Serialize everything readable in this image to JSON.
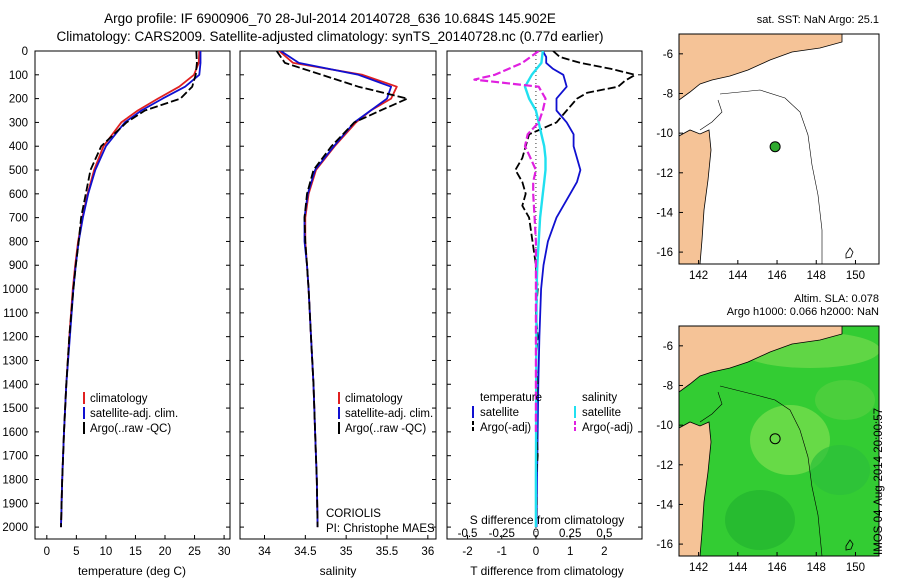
{
  "title_line1": "Argo profile: IF 6900906_70 28-Jul-2014 20140728_636 10.684S 145.902E",
  "title_line2": "Climatology: CARS2009. Satellite-adjusted climatology: synTS_20140728.nc (0.77d earlier)",
  "map1_title": "sat. SST: NaN Argo: 25.1",
  "map2_title_line1": "Altim. SLA: 0.078",
  "map2_title_line2": "Argo h1000: 0.066 h2000: NaN",
  "stamp": "IMOS 04-Aug-2014 20:00:57",
  "colors": {
    "climatology": "#e02020",
    "satellite": "#1010d0",
    "argo": "#000000",
    "salinity_sat": "#20e0f0",
    "salinity_argo": "#e020e0",
    "land": "#f5c397",
    "ocean_green": "#33cc33"
  },
  "chart_data": [
    {
      "type": "line",
      "id": "temperature",
      "xlabel": "temperature (deg C)",
      "ylabel": "",
      "xlim": [
        -2,
        31
      ],
      "ylim": [
        2050,
        0
      ],
      "xticks": [
        0,
        5,
        10,
        15,
        20,
        25,
        30
      ],
      "yticks": [
        0,
        100,
        200,
        300,
        400,
        500,
        600,
        700,
        800,
        900,
        1000,
        1100,
        1200,
        1300,
        1400,
        1500,
        1600,
        1700,
        1800,
        1900,
        2000
      ],
      "legend": [
        "climatology",
        "satellite-adj. clim.",
        "Argo(..raw -QC)"
      ],
      "series": [
        {
          "name": "climatology",
          "depth": [
            0,
            50,
            100,
            150,
            200,
            250,
            300,
            400,
            500,
            600,
            700,
            800,
            900,
            1000,
            1200,
            1400,
            1600,
            1800,
            2000
          ],
          "values": [
            25.8,
            25.7,
            24.9,
            22.4,
            18.8,
            15.4,
            12.6,
            9.6,
            8.0,
            6.9,
            6.0,
            5.3,
            4.8,
            4.4,
            3.8,
            3.3,
            2.9,
            2.6,
            2.4
          ]
        },
        {
          "name": "satellite-adj. clim.",
          "depth": [
            0,
            50,
            100,
            150,
            200,
            250,
            300,
            400,
            500,
            600,
            700,
            800,
            900,
            1000,
            1200,
            1400,
            1600,
            1800,
            2000
          ],
          "values": [
            26.0,
            26.0,
            25.8,
            23.4,
            19.6,
            16.0,
            13.2,
            10.0,
            8.2,
            7.0,
            6.1,
            5.4,
            4.9,
            4.5,
            3.9,
            3.3,
            2.9,
            2.6,
            2.4
          ]
        },
        {
          "name": "Argo(..raw -QC)",
          "depth": [
            0,
            50,
            100,
            150,
            200,
            250,
            300,
            400,
            500,
            600,
            700,
            800,
            900,
            1000,
            1200,
            1400,
            1600,
            1800,
            2000
          ],
          "values": [
            25.3,
            25.4,
            25.2,
            24.6,
            22.6,
            16.6,
            13.5,
            9.2,
            7.4,
            6.6,
            5.8,
            5.4,
            4.9,
            4.5,
            3.8,
            3.3,
            2.9,
            2.6,
            2.4
          ]
        }
      ]
    },
    {
      "type": "line",
      "id": "salinity",
      "xlabel": "salinity",
      "ylabel": "",
      "xlim": [
        33.7,
        36.1
      ],
      "ylim": [
        2050,
        0
      ],
      "xticks": [
        34,
        34.5,
        35,
        35.5,
        36
      ],
      "xticklabels": [
        "34",
        "34.5",
        "35",
        "35.5",
        "36"
      ],
      "legend": [
        "climatology",
        "satellite-adj. clim.",
        "Argo(..raw -QC)"
      ],
      "annotation_line1": "CORIOLIS",
      "annotation_line2": "PI: Christophe MAES",
      "series": [
        {
          "name": "climatology",
          "depth": [
            0,
            50,
            100,
            150,
            200,
            250,
            300,
            400,
            500,
            600,
            700,
            800,
            900,
            1000,
            1200,
            1400,
            1600,
            1800,
            2000
          ],
          "values": [
            34.18,
            34.35,
            35.2,
            35.62,
            35.55,
            35.3,
            35.12,
            34.86,
            34.63,
            34.54,
            34.5,
            34.5,
            34.52,
            34.54,
            34.57,
            34.6,
            34.62,
            34.64,
            34.65
          ]
        },
        {
          "name": "satellite-adj. clim.",
          "depth": [
            0,
            50,
            100,
            150,
            200,
            250,
            300,
            400,
            500,
            600,
            700,
            800,
            900,
            1000,
            1200,
            1400,
            1600,
            1800,
            2000
          ],
          "values": [
            34.2,
            34.42,
            35.15,
            35.55,
            35.5,
            35.3,
            35.1,
            34.85,
            34.62,
            34.53,
            34.49,
            34.49,
            34.52,
            34.54,
            34.57,
            34.6,
            34.62,
            34.64,
            34.65
          ]
        },
        {
          "name": "Argo(..raw -QC)",
          "depth": [
            0,
            50,
            100,
            150,
            200,
            250,
            300,
            400,
            500,
            600,
            700,
            800,
            900,
            1000,
            1200,
            1400,
            1600,
            1800,
            2000
          ],
          "values": [
            34.15,
            34.25,
            34.7,
            35.15,
            35.75,
            35.42,
            35.1,
            34.82,
            34.6,
            34.52,
            34.49,
            34.5,
            34.52,
            34.54,
            34.57,
            34.6,
            34.62,
            34.64,
            34.65
          ]
        }
      ]
    },
    {
      "type": "line",
      "id": "differences",
      "xlabel": "T difference from climatology",
      "x2label": "S difference from climatology",
      "xlim": [
        -2.6,
        3.1
      ],
      "ylim": [
        2050,
        0
      ],
      "xticks": [
        -2,
        -1,
        0,
        1,
        2
      ],
      "x2ticklabels": [
        "-0.5",
        "-0.25",
        "0",
        "0.25",
        "0.5"
      ],
      "legend_temperature_title": "temperature",
      "legend_salinity_title": "salinity",
      "legend_temperature": [
        "satellite",
        "Argo(-adj)"
      ],
      "legend_salinity": [
        "satellite",
        "Argo(-adj)"
      ],
      "series": [
        {
          "name": "temperature satellite",
          "depth": [
            0,
            25,
            50,
            75,
            100,
            150,
            200,
            250,
            300,
            350,
            400,
            450,
            500,
            550,
            600,
            700,
            800,
            900,
            1000,
            1200,
            1400,
            1600,
            1800,
            2000
          ],
          "values": [
            0.2,
            0.3,
            0.3,
            0.5,
            0.8,
            0.9,
            0.6,
            0.6,
            0.9,
            1.1,
            1.1,
            1.2,
            1.3,
            1.2,
            1.0,
            0.6,
            0.35,
            0.22,
            0.15,
            0.1,
            0.07,
            0.05,
            0.03,
            0.02
          ]
        },
        {
          "name": "temperature Argo(-adj)",
          "depth": [
            0,
            25,
            50,
            75,
            100,
            125,
            150,
            175,
            200,
            250,
            300,
            350,
            400,
            450,
            500,
            550,
            600,
            650,
            700,
            800,
            900,
            1000,
            1100,
            1200,
            1300,
            1400,
            1500,
            1600,
            1700,
            1800,
            1900,
            2000
          ],
          "values": [
            0.5,
            0.7,
            1.3,
            2.2,
            2.9,
            2.6,
            2.4,
            1.5,
            1.2,
            0.9,
            0.6,
            -0.2,
            -0.3,
            -0.4,
            -0.6,
            -0.4,
            -0.3,
            -0.4,
            -0.2,
            -0.1,
            0.0,
            0.05,
            0.0,
            0.05,
            0.0,
            0.05,
            0.0,
            0.02,
            0.05,
            0.0,
            0.02,
            0.0
          ]
        },
        {
          "name": "salinity satellite",
          "depth": [
            0,
            50,
            100,
            150,
            200,
            250,
            300,
            350,
            400,
            450,
            500,
            550,
            600,
            700,
            800,
            900,
            1000,
            1200,
            1400,
            1600,
            1800,
            2000
          ],
          "values": [
            0.05,
            0.04,
            -0.03,
            -0.08,
            -0.05,
            0.0,
            0.02,
            0.04,
            0.06,
            0.07,
            0.07,
            0.06,
            0.05,
            0.03,
            0.02,
            0.01,
            0.005,
            0.003,
            0.002,
            0.001,
            0.0,
            0.0
          ]
        },
        {
          "name": "salinity Argo(-adj)",
          "depth": [
            0,
            50,
            100,
            120,
            150,
            200,
            250,
            300,
            350,
            400,
            450,
            500,
            550,
            600,
            700,
            800,
            900,
            1000,
            1100,
            1200,
            1300,
            1400,
            1500,
            1600
          ],
          "values": [
            0.02,
            -0.1,
            -0.3,
            -0.45,
            0.02,
            0.07,
            0.05,
            0.02,
            -0.06,
            -0.08,
            -0.04,
            0.0,
            -0.02,
            -0.02,
            -0.01,
            0.0,
            0.0,
            0.0,
            0.0,
            0.0,
            0.0,
            0.0,
            0.0,
            0.0
          ]
        }
      ]
    },
    {
      "type": "map",
      "id": "sst-map",
      "xlim": [
        141,
        151.2
      ],
      "ylim": [
        -16.6,
        -5
      ],
      "xticks": [
        142,
        144,
        146,
        148,
        150
      ],
      "yticks": [
        -6,
        -8,
        -10,
        -12,
        -14,
        -16
      ],
      "marker": {
        "lon": 145.902,
        "lat": -10.684
      }
    },
    {
      "type": "map",
      "id": "sla-map",
      "xlim": [
        141,
        151.2
      ],
      "ylim": [
        -16.6,
        -5
      ],
      "xticks": [
        142,
        144,
        146,
        148,
        150
      ],
      "yticks": [
        -6,
        -8,
        -10,
        -12,
        -14,
        -16
      ],
      "marker": {
        "lon": 145.902,
        "lat": -10.684
      }
    }
  ]
}
